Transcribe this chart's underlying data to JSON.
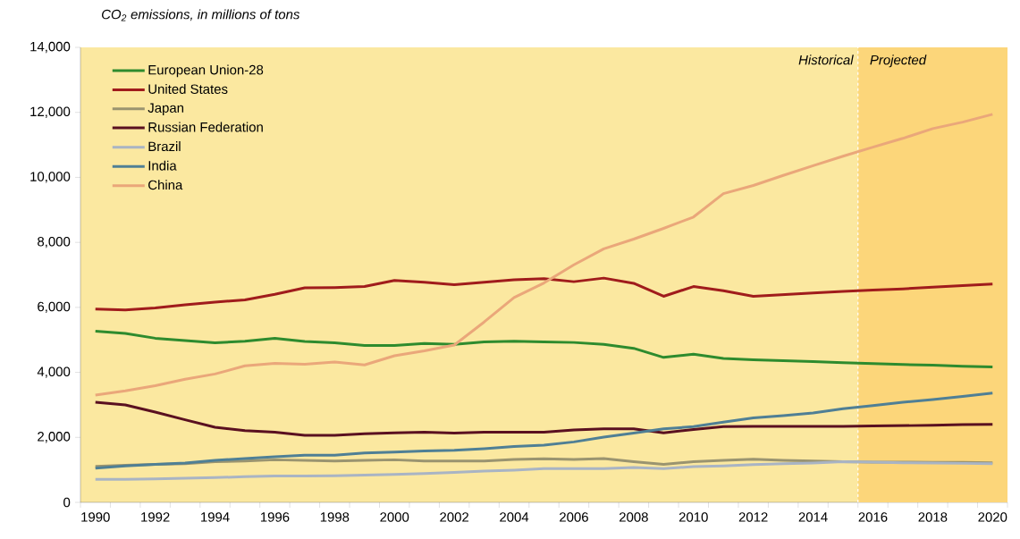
{
  "chart_data": {
    "type": "line",
    "title": "CO$_{2}$ emissions, in millions of tons",
    "x": [
      1990,
      1991,
      1992,
      1993,
      1994,
      1995,
      1996,
      1997,
      1998,
      1999,
      2000,
      2001,
      2002,
      2003,
      2004,
      2005,
      2006,
      2007,
      2008,
      2009,
      2010,
      2011,
      2012,
      2013,
      2014,
      2015,
      2016,
      2017,
      2018,
      2019,
      2020
    ],
    "xlim": [
      1989.5,
      2020.5
    ],
    "xticks": [
      1990,
      1992,
      1994,
      1996,
      1998,
      2000,
      2002,
      2004,
      2006,
      2008,
      2010,
      2012,
      2014,
      2016,
      2018,
      2020,
      {
        "value": 1989.5,
        "label": null
      },
      {
        "value": 1990.5,
        "label": null
      },
      {
        "value": 1991.5,
        "label": null
      },
      {
        "value": 1992.5,
        "label": null
      },
      {
        "value": 1993.5,
        "label": null
      },
      {
        "value": 1994.5,
        "label": null
      },
      {
        "value": 1995.5,
        "label": null
      },
      {
        "value": 1996.5,
        "label": null
      },
      {
        "value": 1997.5,
        "label": null
      },
      {
        "value": 1998.5,
        "label": null
      },
      {
        "value": 1999.5,
        "label": null
      },
      {
        "value": 2000.5,
        "label": null
      },
      {
        "value": 2001.5,
        "label": null
      },
      {
        "value": 2002.5,
        "label": null
      },
      {
        "value": 2003.5,
        "label": null
      },
      {
        "value": 2004.5,
        "label": null
      },
      {
        "value": 2005.5,
        "label": null
      },
      {
        "value": 2006.5,
        "label": null
      },
      {
        "value": 2007.5,
        "label": null
      },
      {
        "value": 2008.5,
        "label": null
      },
      {
        "value": 2009.5,
        "label": null
      },
      {
        "value": 2010.5,
        "label": null
      },
      {
        "value": 2011.5,
        "label": null
      },
      {
        "value": 2012.5,
        "label": null
      },
      {
        "value": 2013.5,
        "label": null
      },
      {
        "value": 2014.5,
        "label": null
      },
      {
        "value": 2015.5,
        "label": null
      },
      {
        "value": 2016.5,
        "label": null
      },
      {
        "value": 2017.5,
        "label": null
      },
      {
        "value": 2018.5,
        "label": null
      },
      {
        "value": 2019.5,
        "label": null
      },
      {
        "value": 2020.5,
        "label": null
      }
    ],
    "ylim": [
      0,
      14000
    ],
    "yticks": [
      0,
      {
        "value": 2000,
        "label": "2,000"
      },
      {
        "value": 4000,
        "label": "4,000"
      },
      {
        "value": 6000,
        "label": "6,000"
      },
      {
        "value": 8000,
        "label": "8,000"
      },
      {
        "value": 10000,
        "label": "10,000"
      },
      {
        "value": 12000,
        "label": "12,000"
      },
      {
        "value": 14000,
        "label": "14,000"
      }
    ],
    "legend": "top left",
    "series": [
      {
        "name": "European Union-28",
        "color": "#2e8b2e",
        "values": [
          5270,
          5200,
          5050,
          4980,
          4910,
          4960,
          5050,
          4950,
          4910,
          4830,
          4830,
          4890,
          4860,
          4940,
          4960,
          4940,
          4920,
          4860,
          4740,
          4460,
          4560,
          4430,
          4390,
          4360,
          4330,
          4300,
          4270,
          4240,
          4220,
          4190,
          4170
        ]
      },
      {
        "name": "United States",
        "color": "#a01c1c",
        "values": [
          5950,
          5920,
          5980,
          6080,
          6160,
          6230,
          6400,
          6600,
          6610,
          6640,
          6830,
          6770,
          6700,
          6770,
          6850,
          6880,
          6790,
          6900,
          6740,
          6340,
          6640,
          6510,
          6340,
          6390,
          6440,
          6490,
          6530,
          6570,
          6620,
          6670,
          6720
        ]
      },
      {
        "name": "Japan",
        "color": "#9a9470",
        "values": [
          1110,
          1140,
          1170,
          1190,
          1250,
          1270,
          1310,
          1290,
          1270,
          1290,
          1310,
          1270,
          1270,
          1270,
          1320,
          1340,
          1320,
          1350,
          1250,
          1170,
          1250,
          1290,
          1330,
          1290,
          1270,
          1250,
          1240,
          1240,
          1230,
          1230,
          1220
        ]
      },
      {
        "name": "Russian Federation",
        "color": "#5a1020",
        "values": [
          3080,
          3000,
          2780,
          2540,
          2310,
          2210,
          2160,
          2060,
          2060,
          2110,
          2140,
          2160,
          2130,
          2160,
          2160,
          2160,
          2230,
          2260,
          2260,
          2140,
          2240,
          2330,
          2340,
          2340,
          2340,
          2340,
          2350,
          2360,
          2370,
          2390,
          2400
        ]
      },
      {
        "name": "Brazil",
        "color": "#a9b4c4",
        "values": [
          710,
          710,
          720,
          740,
          760,
          790,
          810,
          810,
          820,
          840,
          860,
          890,
          920,
          960,
          990,
          1040,
          1040,
          1040,
          1070,
          1040,
          1100,
          1120,
          1160,
          1190,
          1210,
          1250,
          1240,
          1220,
          1210,
          1200,
          1190
        ]
      },
      {
        "name": "India",
        "color": "#4f7f95",
        "values": [
          1050,
          1120,
          1170,
          1210,
          1290,
          1350,
          1400,
          1450,
          1450,
          1520,
          1550,
          1580,
          1600,
          1650,
          1720,
          1760,
          1860,
          2010,
          2130,
          2260,
          2330,
          2470,
          2600,
          2670,
          2750,
          2880,
          2980,
          3080,
          3160,
          3260,
          3360
        ]
      },
      {
        "name": "China",
        "color": "#eaa77a",
        "values": [
          3300,
          3430,
          3590,
          3790,
          3950,
          4200,
          4280,
          4250,
          4320,
          4230,
          4510,
          4660,
          4840,
          5550,
          6300,
          6750,
          7310,
          7800,
          8100,
          8430,
          8780,
          9500,
          9750,
          10060,
          10360,
          10650,
          10930,
          11200,
          11500,
          11700,
          11940
        ]
      }
    ],
    "ref_lines": [
      {
        "axis": "x",
        "value": 2015.5,
        "label": "Historical",
        "color": "#ffffff",
        "line_style": "dashed"
      }
    ],
    "bands": [
      {
        "axis": "x",
        "from": 2015.5,
        "to": 2020.5,
        "label": "Projected",
        "color": "#fcd67a"
      }
    ]
  }
}
